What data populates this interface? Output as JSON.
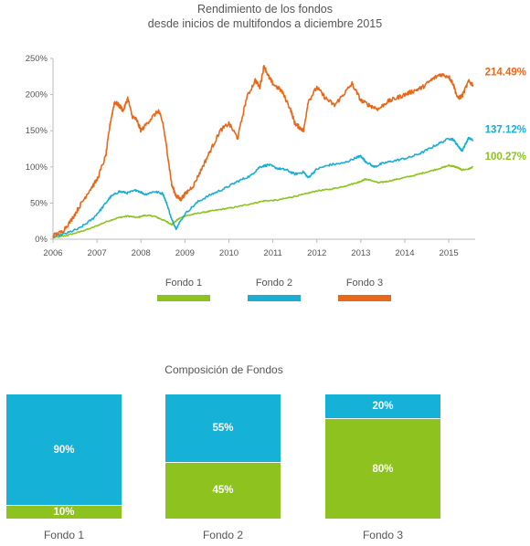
{
  "chart_data": [
    {
      "type": "line",
      "title": "Rendimiento de los fondos",
      "subtitle": "desde inicios de multifondos a diciembre 2015",
      "x_ticks": [
        "2006",
        "2007",
        "2008",
        "2009",
        "2010",
        "2011",
        "2012",
        "2013",
        "2014",
        "2015"
      ],
      "y_ticks": [
        "0%",
        "50%",
        "100%",
        "150%",
        "200%",
        "250%"
      ],
      "xlim": [
        2006,
        2015.6
      ],
      "ylim": [
        0,
        250
      ],
      "grid": false,
      "legend_position": "bottom",
      "series": [
        {
          "name": "Fondo 1",
          "color": "#8dc21f",
          "end_label": "100.27%",
          "x": [
            2006.0,
            2006.3,
            2006.6,
            2006.9,
            2007.2,
            2007.5,
            2007.7,
            2007.9,
            2008.1,
            2008.3,
            2008.45,
            2008.6,
            2008.7,
            2008.85,
            2009.0,
            2009.3,
            2009.6,
            2009.9,
            2010.2,
            2010.5,
            2010.8,
            2011.1,
            2011.4,
            2011.7,
            2012.0,
            2012.3,
            2012.6,
            2012.9,
            2013.0,
            2013.1,
            2013.2,
            2013.4,
            2013.6,
            2013.9,
            2014.2,
            2014.5,
            2014.8,
            2015.0,
            2015.1,
            2015.2,
            2015.3,
            2015.45,
            2015.55
          ],
          "values": [
            2,
            5,
            10,
            16,
            24,
            30,
            32,
            30,
            33,
            32,
            28,
            24,
            20,
            28,
            32,
            36,
            39,
            42,
            45,
            49,
            53,
            54,
            58,
            62,
            67,
            69,
            73,
            78,
            80,
            83,
            82,
            78,
            80,
            84,
            88,
            93,
            98,
            102,
            101,
            99,
            96,
            97,
            100
          ]
        },
        {
          "name": "Fondo 2",
          "color": "#1aaed2",
          "end_label": "137.12%",
          "x": [
            2006.0,
            2006.3,
            2006.6,
            2006.9,
            2007.1,
            2007.3,
            2007.5,
            2007.7,
            2007.9,
            2008.1,
            2008.3,
            2008.5,
            2008.6,
            2008.7,
            2008.8,
            2009.0,
            2009.3,
            2009.6,
            2009.9,
            2010.2,
            2010.5,
            2010.7,
            2010.9,
            2011.1,
            2011.3,
            2011.5,
            2011.7,
            2011.8,
            2012.0,
            2012.3,
            2012.6,
            2012.9,
            2013.0,
            2013.1,
            2013.3,
            2013.5,
            2013.8,
            2014.1,
            2014.4,
            2014.7,
            2015.0,
            2015.1,
            2015.2,
            2015.3,
            2015.45,
            2015.55
          ],
          "values": [
            3,
            8,
            15,
            28,
            42,
            58,
            66,
            64,
            68,
            62,
            66,
            63,
            47,
            27,
            15,
            35,
            52,
            62,
            70,
            80,
            88,
            100,
            103,
            98,
            96,
            90,
            93,
            85,
            97,
            103,
            105,
            113,
            115,
            108,
            100,
            105,
            109,
            113,
            120,
            130,
            139,
            138,
            130,
            122,
            140,
            137
          ]
        },
        {
          "name": "Fondo 3",
          "color": "#e8681a",
          "end_label": "214.49%",
          "x": [
            2006.0,
            2006.2,
            2006.4,
            2006.6,
            2006.8,
            2007.0,
            2007.2,
            2007.3,
            2007.4,
            2007.5,
            2007.6,
            2007.7,
            2007.8,
            2007.9,
            2008.0,
            2008.2,
            2008.4,
            2008.5,
            2008.6,
            2008.7,
            2008.8,
            2008.9,
            2009.0,
            2009.2,
            2009.4,
            2009.6,
            2009.8,
            2010.0,
            2010.2,
            2010.4,
            2010.6,
            2010.7,
            2010.8,
            2010.9,
            2011.0,
            2011.2,
            2011.4,
            2011.5,
            2011.6,
            2011.7,
            2011.8,
            2012.0,
            2012.2,
            2012.4,
            2012.6,
            2012.8,
            2013.0,
            2013.2,
            2013.4,
            2013.6,
            2013.8,
            2014.0,
            2014.2,
            2014.4,
            2014.6,
            2014.8,
            2015.0,
            2015.1,
            2015.2,
            2015.3,
            2015.45,
            2015.55
          ],
          "values": [
            5,
            10,
            25,
            45,
            65,
            82,
            115,
            160,
            190,
            185,
            178,
            195,
            170,
            165,
            150,
            165,
            178,
            160,
            120,
            75,
            60,
            55,
            62,
            75,
            100,
            125,
            150,
            160,
            140,
            195,
            220,
            210,
            240,
            225,
            215,
            205,
            180,
            160,
            155,
            150,
            190,
            210,
            195,
            185,
            200,
            215,
            192,
            185,
            180,
            190,
            195,
            200,
            205,
            210,
            220,
            228,
            225,
            215,
            195,
            198,
            218,
            214
          ]
        }
      ]
    },
    {
      "type": "stacked-bar",
      "title": "Composición de Fondos",
      "categories": [
        "Fondo 1",
        "Fondo 2",
        "Fondo 3"
      ],
      "series": [
        {
          "color": "#8dc21f",
          "values": [
            10,
            45,
            80
          ],
          "labels": [
            "10%",
            "45%",
            "80%"
          ]
        },
        {
          "color": "#15b1d6",
          "values": [
            90,
            55,
            20
          ],
          "labels": [
            "90%",
            "55%",
            "20%"
          ]
        }
      ]
    }
  ]
}
